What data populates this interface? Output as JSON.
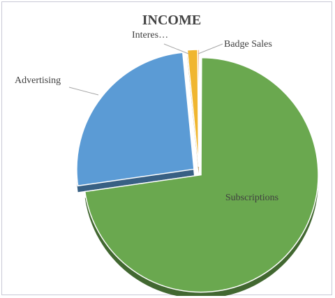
{
  "chart_data": {
    "type": "pie",
    "title": "INCOME",
    "slices": [
      {
        "label": "Subscriptions",
        "value": 72,
        "color": "#6aa84f"
      },
      {
        "label": "Advertising",
        "value": 25.5,
        "color": "#5b9bd5"
      },
      {
        "label": "Interes…",
        "value": 1.4,
        "color": "#f0b630"
      },
      {
        "label": "Badge Sales",
        "value": 0.2,
        "color": "#e46c2e"
      }
    ],
    "legend": "none",
    "style": "3d-exploded"
  }
}
